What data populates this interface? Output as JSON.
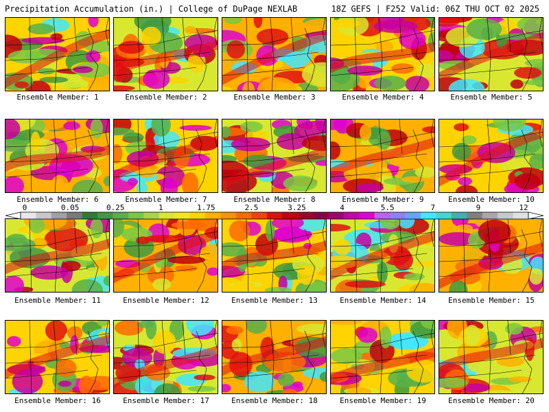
{
  "header": {
    "left": "Precipitation Accumulation (in.) | College of DuPage NEXLAB",
    "right": "18Z GEFS | F252 Valid: 06Z THU OCT 02 2025"
  },
  "members": [
    {
      "label": "Ensemble Member: 1"
    },
    {
      "label": "Ensemble Member: 2"
    },
    {
      "label": "Ensemble Member: 3"
    },
    {
      "label": "Ensemble Member: 4"
    },
    {
      "label": "Ensemble Member: 5"
    },
    {
      "label": "Ensemble Member: 6"
    },
    {
      "label": "Ensemble Member: 7"
    },
    {
      "label": "Ensemble Member: 8"
    },
    {
      "label": "Ensemble Member: 9"
    },
    {
      "label": "Ensemble Member: 10"
    },
    {
      "label": "Ensemble Member: 11"
    },
    {
      "label": "Ensemble Member: 12"
    },
    {
      "label": "Ensemble Member: 13"
    },
    {
      "label": "Ensemble Member: 14"
    },
    {
      "label": "Ensemble Member: 15"
    },
    {
      "label": "Ensemble Member: 16"
    },
    {
      "label": "Ensemble Member: 17"
    },
    {
      "label": "Ensemble Member: 18"
    },
    {
      "label": "Ensemble Member: 19"
    },
    {
      "label": "Ensemble Member: 20"
    }
  ],
  "colorbar": {
    "tick_labels": [
      "0",
      "0.05",
      "0.25",
      "1",
      "1.75",
      "2.5",
      "3.25",
      "4",
      "5.5",
      "7",
      "9",
      "12"
    ],
    "colors": [
      "#e8e8e8",
      "#c8c8c8",
      "#a0a0a0",
      "#7a7a7a",
      "#2e7d2e",
      "#3f9a3f",
      "#58b048",
      "#7ac843",
      "#a8d840",
      "#d8e830",
      "#f0e818",
      "#ffd400",
      "#ffb000",
      "#ff9000",
      "#ff6a00",
      "#f84000",
      "#e01010",
      "#c00010",
      "#a00028",
      "#880040",
      "#a0006c",
      "#c800a0",
      "#e000d0",
      "#c060f0",
      "#9080ff",
      "#60a8ff",
      "#40e8ff",
      "#40d8d0",
      "#40b0b0",
      "#808080",
      "#a8a8a8",
      "#c8c8c8",
      "#e0e0e0"
    ]
  }
}
